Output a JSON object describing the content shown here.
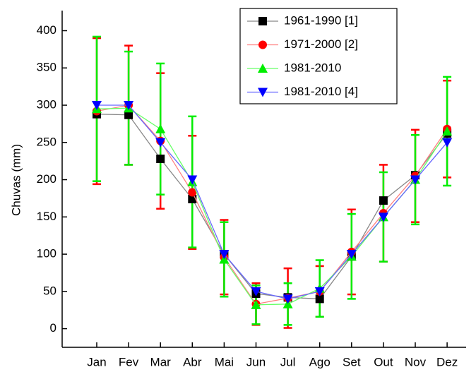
{
  "chart_data": {
    "type": "line",
    "y_label": "Chuvas (mm)",
    "categories": [
      "Jan",
      "Fev",
      "Mar",
      "Abr",
      "Mai",
      "Jun",
      "Jul",
      "Ago",
      "Set",
      "Out",
      "Nov",
      "Dez"
    ],
    "ylim": [
      -25,
      427
    ],
    "yticks": [
      0,
      50,
      100,
      150,
      200,
      250,
      300,
      350,
      400
    ],
    "legend": "top-right",
    "series": [
      {
        "name": "1961-1990 [1]",
        "color": "#000000",
        "line_color": "#888888",
        "marker": "square",
        "values": [
          288,
          287,
          228,
          174,
          100,
          47,
          42,
          40,
          97,
          172,
          206,
          262
        ]
      },
      {
        "name": "1971-2000 [2]",
        "color": "#ff0000",
        "line_color": "#ff8080",
        "marker": "circle",
        "values": [
          292,
          300,
          252,
          183,
          96,
          33,
          41,
          50,
          103,
          155,
          205,
          268
        ],
        "error": [
          98,
          80,
          91,
          76,
          50,
          28,
          40,
          34,
          57,
          65,
          62,
          65
        ]
      },
      {
        "name": "1981-2010",
        "color": "#00ee00",
        "line_color": "#66ff66",
        "marker": "triangle-up",
        "values": [
          295,
          296,
          268,
          197,
          93,
          32,
          33,
          54,
          97,
          150,
          200,
          265
        ],
        "error": [
          97,
          76,
          88,
          88,
          50,
          26,
          28,
          38,
          57,
          60,
          60,
          73
        ]
      },
      {
        "name": "1981-2010 [4]",
        "color": "#0000ff",
        "line_color": "#6666ff",
        "marker": "triangle-down",
        "values": [
          300,
          300,
          250,
          200,
          100,
          50,
          40,
          50,
          100,
          150,
          200,
          250
        ]
      }
    ]
  }
}
